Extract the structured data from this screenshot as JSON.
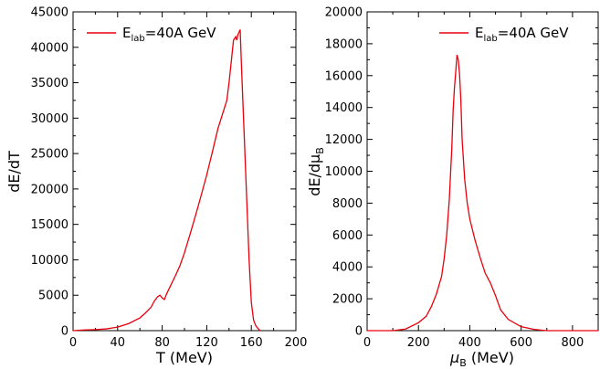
{
  "chart_data": [
    {
      "type": "line",
      "xlabel": "T (MeV)",
      "ylabel": "dE/dT",
      "xlim": [
        0,
        200
      ],
      "ylim": [
        0,
        45000
      ],
      "xticks": [
        "0",
        "40",
        "80",
        "120",
        "160",
        "200"
      ],
      "yticks": [
        "0",
        "5000",
        "10000",
        "15000",
        "20000",
        "25000",
        "30000",
        "35000",
        "40000",
        "45000"
      ],
      "legend": {
        "position": "top-left",
        "label": "E_lab=40A GeV",
        "label_main": "E",
        "label_sub": "lab",
        "label_rest": "=40A GeV"
      },
      "series": [
        {
          "name": "E_lab=40A GeV",
          "color": "#e8000b",
          "x": [
            0,
            10,
            20,
            30,
            40,
            50,
            60,
            65,
            70,
            73,
            76,
            78,
            80,
            82,
            84,
            88,
            92,
            96,
            100,
            105,
            110,
            115,
            120,
            125,
            130,
            135,
            138,
            140,
            142,
            144,
            146,
            147,
            148,
            150,
            151,
            152,
            154,
            156,
            158,
            160,
            162,
            164,
            166,
            168
          ],
          "y": [
            0,
            100,
            150,
            250,
            500,
            1000,
            1800,
            2500,
            3300,
            4200,
            4800,
            5000,
            4600,
            4400,
            5200,
            6500,
            7800,
            9200,
            11000,
            13600,
            16300,
            19100,
            22000,
            25200,
            28500,
            31000,
            32500,
            35000,
            38000,
            41000,
            41500,
            41000,
            41800,
            42500,
            38000,
            34000,
            26000,
            18000,
            10000,
            4000,
            1500,
            700,
            300,
            0
          ]
        }
      ]
    },
    {
      "type": "line",
      "xlabel": "μB (MeV)",
      "xlabel_main": "μ",
      "xlabel_sub": "B",
      "xlabel_rest": " (MeV)",
      "ylabel": "dE/dμB",
      "ylabel_main": "dE/dμ",
      "ylabel_sub": "B",
      "xlim": [
        0,
        900
      ],
      "ylim": [
        0,
        20000
      ],
      "xticks": [
        "0",
        "200",
        "400",
        "600",
        "800"
      ],
      "yticks": [
        "0",
        "2000",
        "4000",
        "6000",
        "8000",
        "10000",
        "12000",
        "14000",
        "16000",
        "18000",
        "20000"
      ],
      "legend": {
        "position": "top-right",
        "label": "E_lab=40A GeV",
        "label_main": "E",
        "label_sub": "lab",
        "label_rest": "=40A GeV"
      },
      "series": [
        {
          "name": "E_lab=40A GeV",
          "color": "#e8000b",
          "x": [
            0,
            100,
            150,
            200,
            230,
            250,
            270,
            290,
            300,
            310,
            320,
            330,
            335,
            340,
            345,
            350,
            355,
            360,
            365,
            370,
            380,
            390,
            400,
            420,
            440,
            460,
            480,
            500,
            520,
            550,
            600,
            650,
            700,
            800,
            900
          ],
          "y": [
            0,
            0,
            100,
            500,
            900,
            1500,
            2300,
            3400,
            4500,
            6000,
            8200,
            11500,
            13800,
            15200,
            16200,
            17300,
            17000,
            16100,
            14500,
            12000,
            9500,
            8000,
            7000,
            5700,
            4600,
            3600,
            3000,
            2200,
            1300,
            700,
            250,
            80,
            0,
            0,
            0
          ]
        }
      ]
    }
  ]
}
